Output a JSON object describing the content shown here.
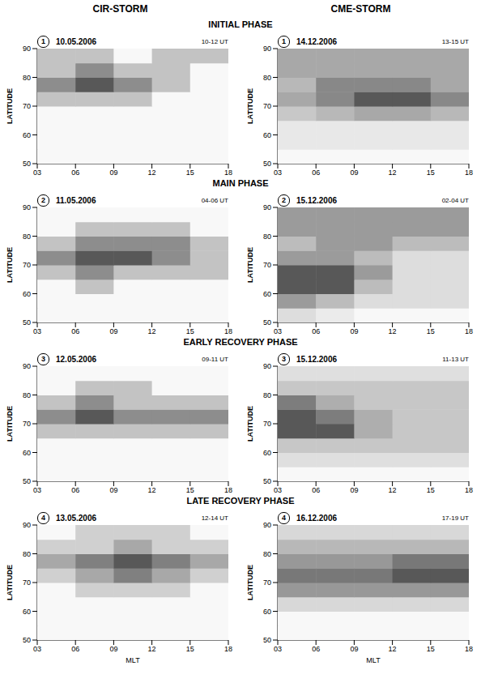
{
  "columns": [
    "CIR-STORM",
    "CME-STORM"
  ],
  "phases": [
    "INITIAL PHASE",
    "MAIN PHASE",
    "EARLY RECOVERY PHASE",
    "LATE RECOVERY PHASE"
  ],
  "chart_data": [
    {
      "type": "heatmap",
      "panel": "1",
      "date": "10.05.2006",
      "time": "10-12 UT",
      "y_label": "LATITUDE",
      "x": [
        4.5,
        7.5,
        10.5,
        13.5,
        16.5
      ],
      "y": [
        52.5,
        57.5,
        62.5,
        67.5,
        72.5,
        77.5,
        82.5,
        87.5
      ],
      "cells": [
        [
          0,
          0,
          0,
          0,
          0
        ],
        [
          0,
          0,
          0,
          0,
          0
        ],
        [
          0,
          0,
          0,
          0,
          0
        ],
        [
          0,
          0,
          0,
          0,
          0
        ],
        [
          1,
          1,
          1,
          0,
          0
        ],
        [
          2,
          3,
          2,
          1,
          0
        ],
        [
          1,
          2,
          1,
          1,
          0
        ],
        [
          1,
          1,
          0,
          1,
          1
        ]
      ],
      "xlim": [
        3,
        18
      ],
      "ylim": [
        50,
        90
      ],
      "xticks": [
        {
          "value": 3,
          "label": "03"
        },
        {
          "value": 6,
          "label": "06"
        },
        {
          "value": 9,
          "label": "09"
        },
        {
          "value": 12,
          "label": "12"
        },
        {
          "value": 15,
          "label": "15"
        },
        {
          "value": 18,
          "label": "18"
        }
      ],
      "yticks": [
        50,
        60,
        70,
        80,
        90
      ],
      "grid": false
    },
    {
      "type": "heatmap",
      "panel": "1",
      "date": "14.12.2006",
      "time": "13-15 UT",
      "y_label": "LATITUDE",
      "x": [
        4.5,
        7.5,
        10.5,
        13.5,
        16.5
      ],
      "y": [
        52.5,
        57.5,
        62.5,
        67.5,
        72.5,
        77.5,
        82.5,
        87.5
      ],
      "cells": [
        [
          0,
          0,
          0,
          0,
          0
        ],
        [
          1,
          1,
          1,
          1,
          1
        ],
        [
          1,
          1,
          1,
          1,
          1
        ],
        [
          3,
          4,
          5,
          5,
          4
        ],
        [
          5,
          7,
          10,
          10,
          7
        ],
        [
          4,
          7,
          7,
          7,
          5
        ],
        [
          5,
          5,
          5,
          5,
          5
        ],
        [
          5,
          5,
          5,
          5,
          5
        ]
      ],
      "xlim": [
        3,
        18
      ],
      "ylim": [
        50,
        90
      ],
      "xticks": [
        {
          "value": 3,
          "label": "03"
        },
        {
          "value": 6,
          "label": "06"
        },
        {
          "value": 9,
          "label": "09"
        },
        {
          "value": 12,
          "label": "12"
        },
        {
          "value": 15,
          "label": "15"
        },
        {
          "value": 18,
          "label": "18"
        }
      ],
      "yticks": [
        50,
        60,
        70,
        80,
        90
      ],
      "grid": false
    },
    {
      "type": "heatmap",
      "panel": "2",
      "date": "11.05.2006",
      "time": "04-06 UT",
      "y_label": "LATITUDE",
      "x": [
        4.5,
        7.5,
        10.5,
        13.5,
        16.5
      ],
      "y": [
        52.5,
        57.5,
        62.5,
        67.5,
        72.5,
        77.5,
        82.5,
        87.5
      ],
      "cells": [
        [
          0,
          0,
          0,
          0,
          0
        ],
        [
          0,
          0,
          0,
          0,
          0
        ],
        [
          0,
          1,
          0,
          0,
          0
        ],
        [
          1,
          2,
          1,
          1,
          1
        ],
        [
          2,
          3,
          3,
          2,
          1
        ],
        [
          1,
          2,
          2,
          2,
          1
        ],
        [
          0,
          1,
          1,
          1,
          0
        ],
        [
          0,
          0,
          0,
          0,
          0
        ]
      ],
      "xlim": [
        3,
        18
      ],
      "ylim": [
        50,
        90
      ],
      "xticks": [
        {
          "value": 3,
          "label": "03"
        },
        {
          "value": 6,
          "label": "06"
        },
        {
          "value": 9,
          "label": "09"
        },
        {
          "value": 12,
          "label": "12"
        },
        {
          "value": 15,
          "label": "15"
        },
        {
          "value": 18,
          "label": "18"
        }
      ],
      "yticks": [
        50,
        60,
        70,
        80,
        90
      ],
      "grid": false
    },
    {
      "type": "heatmap",
      "panel": "2",
      "date": "15.12.2006",
      "time": "02-04 UT",
      "y_label": "LATITUDE",
      "x": [
        4.5,
        7.5,
        10.5,
        13.5,
        16.5
      ],
      "y": [
        52.5,
        57.5,
        62.5,
        67.5,
        72.5,
        77.5,
        82.5,
        87.5
      ],
      "cells": [
        [
          4,
          2,
          0,
          0,
          0
        ],
        [
          14,
          9,
          4,
          4,
          4
        ],
        [
          24,
          24,
          9,
          4,
          4
        ],
        [
          24,
          24,
          14,
          4,
          4
        ],
        [
          14,
          14,
          9,
          4,
          4
        ],
        [
          9,
          14,
          14,
          9,
          9
        ],
        [
          14,
          14,
          14,
          14,
          14
        ],
        [
          14,
          14,
          14,
          14,
          14
        ]
      ],
      "xlim": [
        3,
        18
      ],
      "ylim": [
        50,
        90
      ],
      "xticks": [
        {
          "value": 3,
          "label": "03"
        },
        {
          "value": 6,
          "label": "06"
        },
        {
          "value": 9,
          "label": "09"
        },
        {
          "value": 12,
          "label": "12"
        },
        {
          "value": 15,
          "label": "15"
        },
        {
          "value": 18,
          "label": "18"
        }
      ],
      "yticks": [
        50,
        60,
        70,
        80,
        90
      ],
      "grid": false
    },
    {
      "type": "heatmap",
      "panel": "3",
      "date": "12.05.2006",
      "time": "09-11 UT",
      "y_label": "LATITUDE",
      "x": [
        4.5,
        7.5,
        10.5,
        13.5,
        16.5
      ],
      "y": [
        52.5,
        57.5,
        62.5,
        67.5,
        72.5,
        77.5,
        82.5,
        87.5
      ],
      "cells": [
        [
          0,
          0,
          0,
          0,
          0
        ],
        [
          0,
          0,
          0,
          0,
          0
        ],
        [
          0,
          0,
          0,
          0,
          0
        ],
        [
          1,
          1,
          1,
          1,
          1
        ],
        [
          2,
          3,
          2,
          2,
          2
        ],
        [
          1,
          2,
          1,
          1,
          1
        ],
        [
          0,
          1,
          1,
          0,
          0
        ],
        [
          0,
          0,
          0,
          0,
          0
        ]
      ],
      "xlim": [
        3,
        18
      ],
      "ylim": [
        50,
        90
      ],
      "xticks": [
        {
          "value": 3,
          "label": "03"
        },
        {
          "value": 6,
          "label": "06"
        },
        {
          "value": 9,
          "label": "09"
        },
        {
          "value": 12,
          "label": "12"
        },
        {
          "value": 15,
          "label": "15"
        },
        {
          "value": 18,
          "label": "18"
        }
      ],
      "yticks": [
        50,
        60,
        70,
        80,
        90
      ],
      "grid": false
    },
    {
      "type": "heatmap",
      "panel": "3",
      "date": "15.12.2006",
      "time": "11-13 UT",
      "y_label": "LATITUDE",
      "x": [
        4.5,
        7.5,
        10.5,
        13.5,
        16.5
      ],
      "y": [
        52.5,
        57.5,
        62.5,
        67.5,
        72.5,
        77.5,
        82.5,
        87.5
      ],
      "cells": [
        [
          0,
          0,
          0,
          0,
          0
        ],
        [
          2,
          2,
          2,
          2,
          2
        ],
        [
          4,
          4,
          4,
          4,
          4
        ],
        [
          13,
          13,
          6,
          4,
          4
        ],
        [
          13,
          10,
          6,
          4,
          4
        ],
        [
          10,
          6,
          4,
          4,
          4
        ],
        [
          4,
          4,
          4,
          4,
          4
        ],
        [
          2,
          2,
          2,
          2,
          2
        ]
      ],
      "xlim": [
        3,
        18
      ],
      "ylim": [
        50,
        90
      ],
      "xticks": [
        {
          "value": 3,
          "label": "03"
        },
        {
          "value": 6,
          "label": "06"
        },
        {
          "value": 9,
          "label": "09"
        },
        {
          "value": 12,
          "label": "12"
        },
        {
          "value": 15,
          "label": "15"
        },
        {
          "value": 18,
          "label": "18"
        }
      ],
      "yticks": [
        50,
        60,
        70,
        80,
        90
      ],
      "grid": false
    },
    {
      "type": "heatmap",
      "panel": "4",
      "date": "13.05.2006",
      "time": "12-14 UT",
      "y_label": "LATITUDE",
      "x_label": "MLT",
      "x": [
        4.5,
        7.5,
        10.5,
        13.5,
        16.5
      ],
      "y": [
        52.5,
        57.5,
        62.5,
        67.5,
        72.5,
        77.5,
        82.5,
        87.5
      ],
      "cells": [
        [
          0,
          0,
          0,
          0,
          0
        ],
        [
          0,
          0,
          0,
          0,
          0
        ],
        [
          0,
          0,
          0,
          0,
          0
        ],
        [
          0,
          1,
          1,
          1,
          0
        ],
        [
          1,
          2,
          3,
          2,
          1
        ],
        [
          2,
          3,
          4,
          3,
          2
        ],
        [
          1,
          1,
          2,
          1,
          1
        ],
        [
          0,
          1,
          1,
          1,
          0
        ]
      ],
      "xlim": [
        3,
        18
      ],
      "ylim": [
        50,
        90
      ],
      "xticks": [
        {
          "value": 3,
          "label": "03"
        },
        {
          "value": 6,
          "label": "06"
        },
        {
          "value": 9,
          "label": "09"
        },
        {
          "value": 12,
          "label": "12"
        },
        {
          "value": 15,
          "label": "15"
        },
        {
          "value": 18,
          "label": "18"
        }
      ],
      "yticks": [
        50,
        60,
        70,
        80,
        90
      ],
      "grid": false
    },
    {
      "type": "heatmap",
      "panel": "4",
      "date": "16.12.2006",
      "time": "17-19 UT",
      "y_label": "LATITUDE",
      "x_label": "MLT",
      "x": [
        4.5,
        7.5,
        10.5,
        13.5,
        16.5
      ],
      "y": [
        52.5,
        57.5,
        62.5,
        67.5,
        72.5,
        77.5,
        82.5,
        87.5
      ],
      "cells": [
        [
          0,
          0,
          0,
          0,
          0
        ],
        [
          0,
          0,
          0,
          0,
          0
        ],
        [
          1,
          1,
          1,
          1,
          1
        ],
        [
          3,
          3,
          3,
          3,
          3
        ],
        [
          4,
          4,
          4,
          5,
          5
        ],
        [
          3,
          3,
          3,
          4,
          4
        ],
        [
          2,
          2,
          2,
          2,
          2
        ],
        [
          1,
          1,
          1,
          1,
          1
        ]
      ],
      "xlim": [
        3,
        18
      ],
      "ylim": [
        50,
        90
      ],
      "xticks": [
        {
          "value": 3,
          "label": "03"
        },
        {
          "value": 6,
          "label": "06"
        },
        {
          "value": 9,
          "label": "09"
        },
        {
          "value": 12,
          "label": "12"
        },
        {
          "value": 15,
          "label": "15"
        },
        {
          "value": 18,
          "label": "18"
        }
      ],
      "yticks": [
        50,
        60,
        70,
        80,
        90
      ],
      "grid": false
    }
  ]
}
